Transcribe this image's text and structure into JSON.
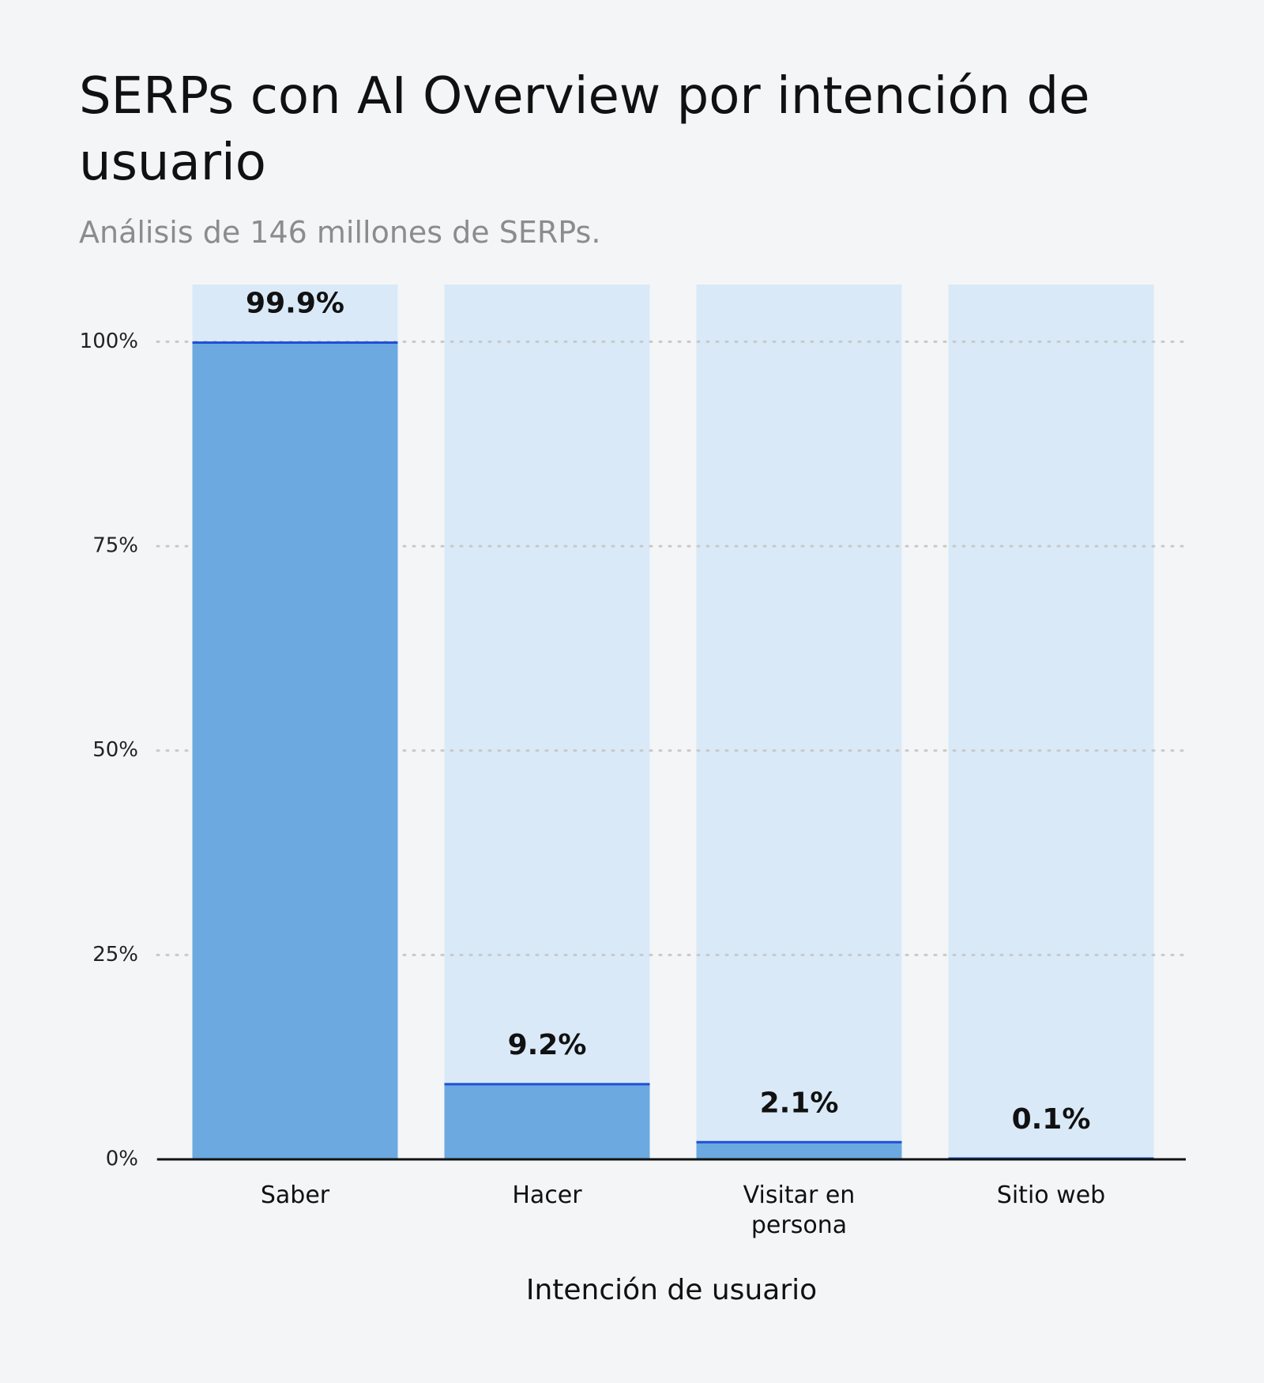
{
  "chart_data": {
    "type": "bar",
    "title": "SERPs con AI Overview por intención de usuario",
    "subtitle": "Análisis de 146 millones de SERPs.",
    "x_label": "Intención de usuario",
    "categories": [
      "Saber",
      "Hacer",
      "Visitar en persona",
      "Sitio web"
    ],
    "values": [
      99.9,
      9.2,
      2.1,
      0.1
    ],
    "value_labels": [
      "99.9%",
      "9.2%",
      "2.1%",
      "0.1%"
    ],
    "color": "#6ba9e0",
    "ylim": [
      0,
      107
    ],
    "yticks": [
      {
        "value": 0,
        "label": "0%"
      },
      {
        "value": 25,
        "label": "25%"
      },
      {
        "value": 50,
        "label": "50%"
      },
      {
        "value": 75,
        "label": "75%"
      },
      {
        "value": 100,
        "label": "100%"
      }
    ],
    "grid": true
  }
}
